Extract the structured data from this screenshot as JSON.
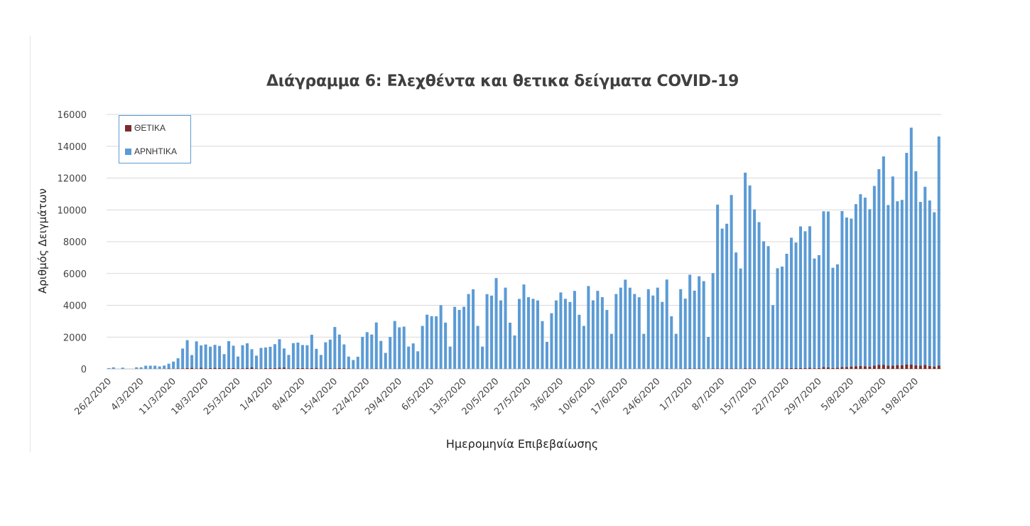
{
  "chart_data": {
    "type": "bar",
    "stacked": true,
    "title": "Διάγραμμα 6: Ελεχθέντα και θετικα δείγματα COVID-19",
    "xlabel": "Ημερομηνία Επιβεβαίωσης",
    "ylabel": "Αριθμός Δειγμάτων",
    "ylim": [
      0,
      16000
    ],
    "yticks": [
      0,
      2000,
      4000,
      6000,
      8000,
      10000,
      12000,
      14000,
      16000
    ],
    "x_start": "26/2/2020",
    "x_end": "24/8/2020",
    "xtick_labels": [
      "26/2/2020",
      "4/3/2020",
      "11/3/2020",
      "18/3/2020",
      "25/3/2020",
      "1/4/2020",
      "8/4/2020",
      "15/4/2020",
      "22/4/2020",
      "29/4/2020",
      "6/5/2020",
      "13/5/2020",
      "20/5/2020",
      "27/5/2020",
      "3/6/2020",
      "10/6/2020",
      "17/6/2020",
      "24/6/2020",
      "1/7/2020",
      "8/7/2020",
      "15/7/2020",
      "22/7/2020",
      "29/7/2020",
      "5/8/2020",
      "12/8/2020",
      "19/8/2020"
    ],
    "xtick_step_days": 7,
    "grid": true,
    "legend_position": "top-left",
    "series": [
      {
        "name": "ΘΕΤΙΚΑ",
        "color": "#7b2c2c",
        "values": [
          0,
          0,
          0,
          0,
          0,
          0,
          0,
          1,
          1,
          3,
          2,
          7,
          10,
          28,
          10,
          19,
          30,
          58,
          73,
          31,
          78,
          35,
          48,
          64,
          45,
          30,
          46,
          60,
          28,
          40,
          62,
          90,
          35,
          20,
          50,
          42,
          55,
          68,
          85,
          32,
          20,
          56,
          52,
          40,
          48,
          62,
          30,
          25,
          40,
          35,
          58,
          42,
          25,
          10,
          16,
          15,
          10,
          12,
          20,
          10,
          6,
          8,
          12,
          15,
          10,
          5,
          4,
          6,
          3,
          10,
          16,
          12,
          8,
          10,
          5,
          3,
          10,
          9,
          8,
          6,
          5,
          3,
          2,
          10,
          12,
          8,
          10,
          6,
          4,
          3,
          10,
          12,
          8,
          6,
          5,
          3,
          2,
          5,
          8,
          6,
          8,
          5,
          4,
          3,
          10,
          12,
          8,
          10,
          6,
          4,
          8,
          10,
          12,
          8,
          10,
          6,
          5,
          12,
          15,
          10,
          12,
          20,
          8,
          6,
          15,
          18,
          22,
          20,
          25,
          18,
          10,
          25,
          30,
          22,
          28,
          35,
          20,
          15,
          40,
          35,
          30,
          28,
          25,
          20,
          12,
          30,
          35,
          40,
          50,
          45,
          60,
          55,
          70,
          40,
          50,
          110,
          100,
          60,
          75,
          125,
          120,
          150,
          160,
          185,
          170,
          140,
          205,
          260,
          262,
          203,
          200,
          240,
          225,
          284,
          270,
          230,
          200,
          250,
          190,
          150,
          215
        ]
      },
      {
        "name": "ΑΡΝΗΤΙΚΑ",
        "color": "#5b9bd5",
        "values": [
          50,
          100,
          0,
          80,
          0,
          0,
          100,
          100,
          200,
          200,
          200,
          150,
          200,
          300,
          450,
          650,
          1250,
          1750,
          800,
          1700,
          1400,
          1500,
          1350,
          1450,
          1400,
          900,
          1700,
          1400,
          750,
          1450,
          1550,
          1150,
          800,
          1300,
          1300,
          1350,
          1500,
          1800,
          1200,
          850,
          1600,
          1600,
          1450,
          1450,
          2100,
          1200,
          850,
          1650,
          1800,
          2600,
          2100,
          1500,
          750,
          550,
          750,
          2000,
          2300,
          2150,
          2900,
          1750,
          1000,
          2000,
          3000,
          2600,
          2650,
          1400,
          1600,
          1100,
          2700,
          3400,
          3300,
          3300,
          4000,
          2900,
          1400,
          3900,
          3700,
          3900,
          4700,
          5000,
          2700,
          1400,
          4700,
          4600,
          5700,
          4300,
          5100,
          2900,
          2100,
          4400,
          5300,
          4500,
          4400,
          4300,
          3000,
          1700,
          3500,
          4300,
          4800,
          4400,
          4200,
          4900,
          3400,
          2700,
          5200,
          4300,
          4900,
          4500,
          3700,
          2200,
          4700,
          5100,
          5600,
          5100,
          4700,
          4500,
          2200,
          5000,
          4600,
          5100,
          4200,
          5600,
          3300,
          2200,
          5000,
          4400,
          5900,
          4900,
          5800,
          5500,
          2000,
          6000,
          10300,
          8800,
          9100,
          10900,
          7300,
          6300,
          12300,
          11500,
          10000,
          9200,
          8000,
          7700,
          4000,
          6300,
          6400,
          7200,
          8200,
          7900,
          8900,
          8600,
          8900,
          6900,
          7100,
          9800,
          9800,
          6300,
          6500,
          9800,
          9400,
          9300,
          10200,
          10800,
          10600,
          9900,
          11300,
          12300,
          13100,
          10100,
          11900,
          10300,
          10400,
          13300,
          14900,
          12200,
          10300,
          11200,
          10400,
          9700,
          14400
        ]
      }
    ]
  }
}
